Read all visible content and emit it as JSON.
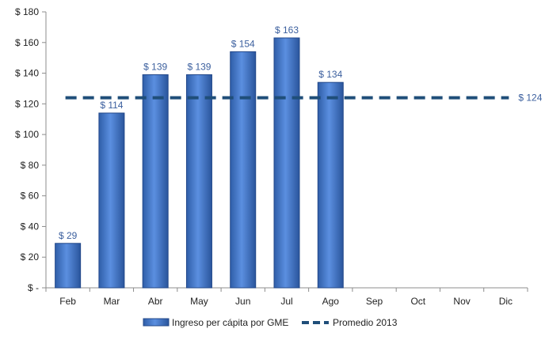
{
  "chart_data": {
    "type": "bar",
    "categories": [
      "Feb",
      "Mar",
      "Abr",
      "May",
      "Jun",
      "Jul",
      "Ago",
      "Sep",
      "Oct",
      "Nov",
      "Dic"
    ],
    "series": [
      {
        "name": "Ingreso per cápita por GME",
        "values": [
          29,
          114,
          139,
          139,
          154,
          163,
          134,
          null,
          null,
          null,
          null
        ],
        "data_labels": [
          "$ 29",
          "$ 114",
          "$ 139",
          "$ 139",
          "$ 154",
          "$ 163",
          "$ 134"
        ],
        "color": "#3c6fbf"
      }
    ],
    "reference_line": {
      "name": "Promedio 2013",
      "value": 124,
      "label": "$ 124",
      "color": "#1f4e79",
      "style": "dashed"
    },
    "ylim": [
      0,
      180
    ],
    "yticks": [
      0,
      20,
      40,
      60,
      80,
      100,
      120,
      140,
      160,
      180
    ],
    "ytick_labels": [
      "$ -",
      "$ 20",
      "$ 40",
      "$ 60",
      "$ 80",
      "$ 100",
      "$ 120",
      "$ 140",
      "$ 160",
      "$ 180"
    ],
    "title": "",
    "xlabel": "",
    "ylabel": "",
    "grid": false,
    "legend_position": "bottom"
  }
}
